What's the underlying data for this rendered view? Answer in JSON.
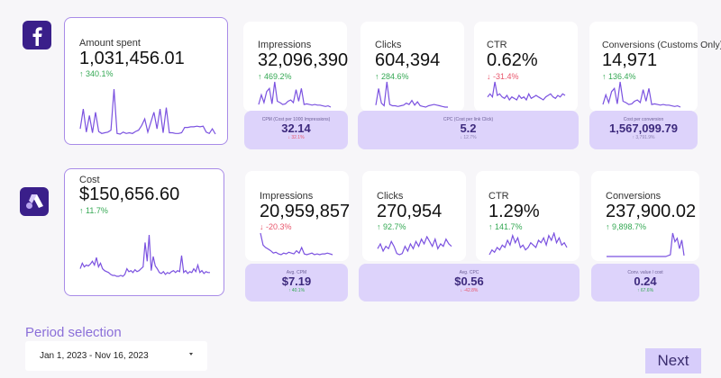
{
  "colors": {
    "accent": "#7b52e0",
    "sub_card_bg": "#ddd3fb",
    "up": "#34a853",
    "down": "#e8556b",
    "logo_bg": "#3a1f8a"
  },
  "facebook": {
    "logo_icon": "facebook-icon",
    "main": {
      "label": "Amount spent",
      "value": "1,031,456.01",
      "delta": "340.1%",
      "direction": "up",
      "spark": [
        10,
        40,
        5,
        30,
        4,
        35,
        6,
        3,
        4,
        5,
        8,
        70,
        3,
        2,
        5,
        3,
        4,
        3,
        6,
        8,
        15,
        25,
        5,
        20,
        35,
        10,
        40,
        4,
        42,
        4,
        4,
        3,
        3,
        4,
        12,
        12,
        13,
        13,
        14,
        13,
        14,
        5,
        3,
        10,
        2
      ]
    },
    "metrics": [
      {
        "label": "Impressions",
        "value": "32,096,390",
        "delta": "469.2%",
        "direction": "up",
        "spark": [
          5,
          20,
          8,
          25,
          30,
          6,
          40,
          10,
          8,
          5,
          6,
          10,
          12,
          8,
          28,
          10,
          30,
          5,
          6,
          5,
          4,
          5,
          4,
          4,
          3,
          2,
          3,
          1
        ]
      },
      {
        "label": "Clicks",
        "value": "604,394",
        "delta": "284.6%",
        "direction": "up",
        "spark": [
          5,
          30,
          8,
          4,
          40,
          6,
          4,
          4,
          3,
          4,
          5,
          8,
          6,
          12,
          5,
          10,
          4,
          3,
          2,
          4,
          5,
          6,
          5,
          4,
          3,
          2,
          2
        ]
      },
      {
        "label": "CTR",
        "value": "0.62%",
        "delta": "-31.4%",
        "direction": "down",
        "spark": [
          8,
          10,
          8,
          18,
          9,
          10,
          8,
          7,
          9,
          6,
          8,
          7,
          6,
          9,
          7,
          8,
          6,
          10,
          7,
          8,
          9,
          8,
          7,
          6,
          8,
          9,
          10,
          8,
          7,
          9,
          8,
          10,
          9
        ]
      },
      {
        "label": "Conversions (Customs Only)",
        "value": "14,971",
        "delta": "136.4%",
        "direction": "up",
        "spark": [
          5,
          20,
          8,
          25,
          30,
          6,
          40,
          10,
          8,
          5,
          6,
          10,
          12,
          8,
          28,
          10,
          30,
          5,
          6,
          5,
          4,
          5,
          4,
          4,
          3,
          2,
          3,
          1
        ]
      }
    ],
    "subs": [
      {
        "label": "CPM (Cost per 1000 Impressions)",
        "value": "32.14",
        "delta": "32.1%",
        "direction": "down"
      },
      {
        "label": "CPC (Cost per link Click)",
        "value": "5.2",
        "delta": "12.7%",
        "direction": "down"
      },
      {
        "label": "Cost per conversion",
        "value": "1,567,099.79",
        "delta": "3,791.9%",
        "direction": "up"
      }
    ]
  },
  "google_ads": {
    "logo_icon": "google-ads-icon",
    "main": {
      "label": "Cost",
      "value": "$150,656.60",
      "delta": "11.7%",
      "direction": "up",
      "spark": [
        12,
        18,
        14,
        16,
        15,
        17,
        20,
        16,
        24,
        14,
        18,
        12,
        10,
        9,
        8,
        6,
        5,
        5,
        4,
        4,
        5,
        4,
        6,
        12,
        9,
        10,
        8,
        11,
        9,
        10,
        12,
        14,
        40,
        20,
        48,
        10,
        25,
        15,
        12,
        8,
        7,
        9,
        6,
        8,
        7,
        9,
        10,
        8,
        10,
        9,
        26,
        8,
        10,
        7,
        9,
        8,
        12,
        9,
        16,
        8,
        10,
        7,
        9,
        8,
        8
      ]
    },
    "metrics": [
      {
        "label": "Impressions",
        "value": "20,959,857",
        "delta": "-20.3%",
        "direction": "down",
        "spark": [
          30,
          15,
          12,
          10,
          8,
          5,
          6,
          4,
          3,
          5,
          4,
          6,
          5,
          4,
          8,
          5,
          12,
          4,
          3,
          4,
          5,
          3,
          4,
          3,
          4,
          4,
          5,
          4,
          3
        ]
      },
      {
        "label": "Clicks",
        "value": "270,954",
        "delta": "92.7%",
        "direction": "up",
        "spark": [
          10,
          14,
          8,
          12,
          10,
          16,
          12,
          6,
          5,
          6,
          12,
          8,
          14,
          10,
          16,
          12,
          18,
          14,
          20,
          16,
          12,
          18,
          10,
          14,
          12,
          18,
          14,
          12
        ]
      },
      {
        "label": "CTR",
        "value": "1.29%",
        "delta": "141.7%",
        "direction": "up",
        "spark": [
          4,
          8,
          6,
          10,
          8,
          12,
          10,
          16,
          12,
          20,
          14,
          18,
          10,
          12,
          8,
          10,
          14,
          12,
          10,
          16,
          14,
          18,
          12,
          20,
          16,
          22,
          14,
          18,
          12,
          14,
          10
        ]
      },
      {
        "label": "Conversions",
        "value": "237,900.02",
        "delta": "9,898.7%",
        "direction": "up",
        "spark": [
          1,
          1,
          1,
          1,
          1,
          1,
          1,
          1,
          1,
          1,
          1,
          1,
          1,
          1,
          1,
          1,
          1,
          1,
          1,
          1,
          1,
          1,
          1,
          1,
          1,
          1,
          1,
          2,
          3,
          28,
          18,
          22,
          10,
          20,
          2
        ]
      }
    ],
    "subs": [
      {
        "label": "Avg. CPM",
        "value": "$7.19",
        "delta": "40.1%",
        "direction": "up"
      },
      {
        "label": "Avg. CPC",
        "value": "$0.56",
        "delta": "-42.8%",
        "direction": "down"
      },
      {
        "label": "Conv. value / cost",
        "value": "0.24",
        "delta": "67.6%",
        "direction": "up"
      }
    ]
  },
  "period": {
    "title": "Period selection",
    "value": "Jan 1, 2023 - Nov 16, 2023"
  },
  "next_button": "Next"
}
